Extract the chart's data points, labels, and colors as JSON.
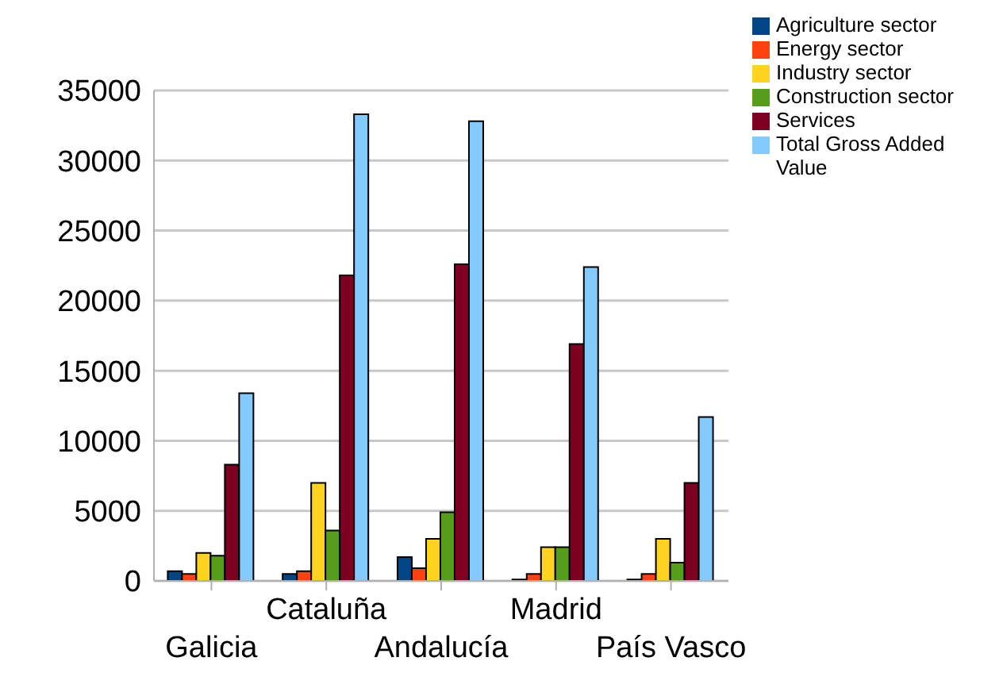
{
  "chart_data": {
    "type": "bar",
    "categories": [
      "Galicia",
      "Cataluña",
      "Andalucía",
      "Madrid",
      "País Vasco"
    ],
    "series": [
      {
        "name": "Agriculture sector",
        "color": "#004586",
        "values": [
          700,
          500,
          1700,
          100,
          100
        ]
      },
      {
        "name": "Energy sector",
        "color": "#ff420e",
        "values": [
          500,
          700,
          900,
          500,
          500
        ]
      },
      {
        "name": "Industry sector",
        "color": "#ffd320",
        "values": [
          2000,
          7000,
          3000,
          2400,
          3000
        ]
      },
      {
        "name": "Construction sector",
        "color": "#579d1c",
        "values": [
          1800,
          3600,
          4900,
          2400,
          1300
        ]
      },
      {
        "name": "Services",
        "color": "#7e0021",
        "values": [
          8300,
          21800,
          22600,
          16900,
          7000
        ]
      },
      {
        "name": "Total Gross Added Value",
        "color": "#83caff",
        "values": [
          13400,
          33300,
          32800,
          22400,
          11700
        ]
      }
    ],
    "ylim": [
      0,
      35000
    ],
    "yticks": [
      0,
      5000,
      10000,
      15000,
      20000,
      25000,
      30000,
      35000
    ],
    "grid": "y",
    "legend": "top right"
  }
}
